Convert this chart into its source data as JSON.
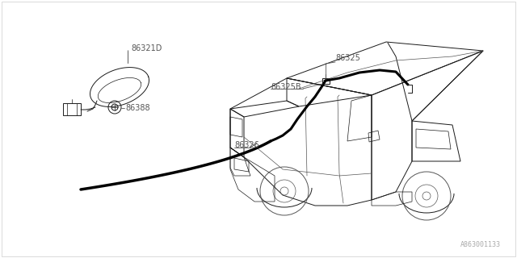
{
  "bg_color": "#ffffff",
  "line_color": "#1a1a1a",
  "thin_color": "#555555",
  "thick_line_color": "#000000",
  "label_color": "#555555",
  "watermark_color": "#aaaaaa",
  "watermark": "A863001133"
}
